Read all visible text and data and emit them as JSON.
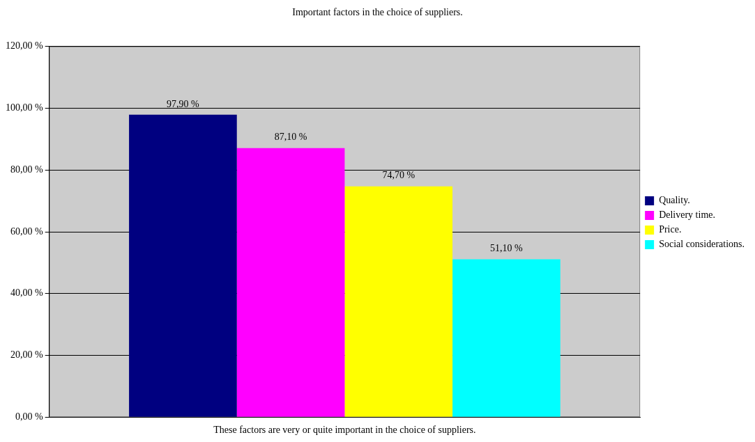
{
  "chart_data": {
    "type": "bar",
    "title": "Important factors in the choice of suppliers.",
    "categories": [
      "These factors are very or quite important in the choice of suppliers."
    ],
    "series": [
      {
        "name": "Quality.",
        "color": "#000080",
        "values": [
          97.9
        ],
        "value_labels": [
          "97,90 %"
        ]
      },
      {
        "name": "Delivery time.",
        "color": "#ff00ff",
        "values": [
          87.1
        ],
        "value_labels": [
          "87,10 %"
        ]
      },
      {
        "name": "Price.",
        "color": "#ffff00",
        "values": [
          74.7
        ],
        "value_labels": [
          "74,70 %"
        ]
      },
      {
        "name": "Social considerations.",
        "color": "#00ffff",
        "values": [
          51.1
        ],
        "value_labels": [
          "51,10 %"
        ]
      }
    ],
    "ylim": [
      0,
      120
    ],
    "yticks": [
      {
        "value": 0,
        "label": "0,00 %"
      },
      {
        "value": 20,
        "label": "20,00 %"
      },
      {
        "value": 40,
        "label": "40,00 %"
      },
      {
        "value": 60,
        "label": "60,00 %"
      },
      {
        "value": 80,
        "label": "80,00 %"
      },
      {
        "value": 100,
        "label": "100,00 %"
      },
      {
        "value": 120,
        "label": "120,00 %"
      }
    ],
    "grid": "y",
    "legend": "right"
  }
}
